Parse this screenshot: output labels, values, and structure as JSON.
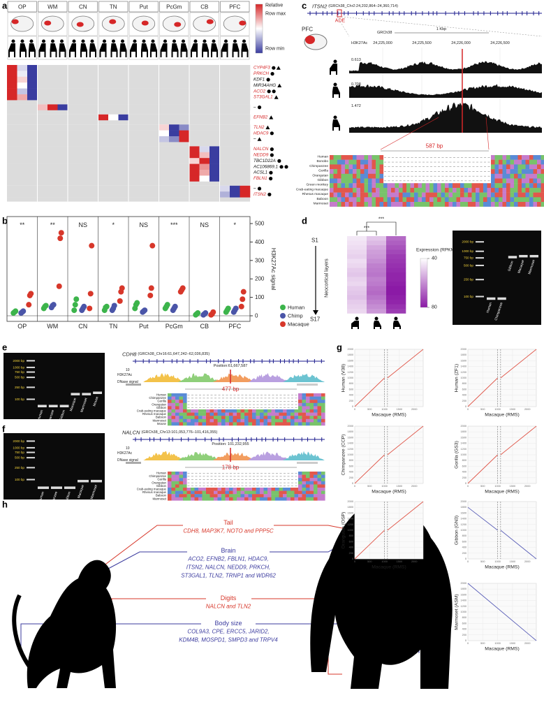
{
  "panel_labels": [
    "a",
    "b",
    "c",
    "d",
    "e",
    "f",
    "g",
    "h"
  ],
  "panel_a": {
    "regions": [
      "OP",
      "WM",
      "CN",
      "TN",
      "Put",
      "PcGm",
      "CB",
      "PFC"
    ],
    "legend": {
      "title": "Relative",
      "max": "Row max",
      "min": "Row min"
    },
    "rows": [
      {
        "gene": "CYP4F3",
        "highlight": true,
        "marker": "circle-triangle",
        "region": 0,
        "values": [
          1,
          -0.2,
          -1
        ]
      },
      {
        "gene": "PRKCH",
        "highlight": true,
        "marker": "circle",
        "region": 0,
        "values": [
          1,
          -0.1,
          -1
        ]
      },
      {
        "gene": "KDF1",
        "highlight": false,
        "marker": "circle",
        "region": 0,
        "values": [
          1,
          0.2,
          -1
        ]
      },
      {
        "gene": "MIR34AHG",
        "highlight": false,
        "marker": "triangle",
        "region": 0,
        "values": [
          1,
          0,
          -1
        ]
      },
      {
        "gene": "ACO2",
        "highlight": true,
        "marker": "circle-circle",
        "region": 0,
        "values": [
          1,
          -0.3,
          -1
        ]
      },
      {
        "gene": "ST3GAL1",
        "highlight": true,
        "marker": "triangle",
        "region": 0,
        "values": [
          1,
          0.4,
          -1
        ]
      },
      {
        "gene": "–",
        "highlight": false,
        "marker": "circle",
        "region": 1,
        "values": [
          0.3,
          1,
          -1
        ]
      },
      {
        "gene": "EFNB2",
        "highlight": true,
        "marker": "triangle",
        "region": 3,
        "values": [
          1,
          0,
          -1
        ]
      },
      {
        "gene": "TLN2",
        "highlight": true,
        "marker": "triangle",
        "region": 5,
        "values": [
          0.2,
          -1,
          -0.6
        ]
      },
      {
        "gene": "HDAC9",
        "highlight": true,
        "marker": "circle",
        "region": 5,
        "values": [
          0,
          -1,
          1
        ]
      },
      {
        "gene": "–",
        "highlight": false,
        "marker": "triangle",
        "region": 5,
        "values": [
          -0.3,
          -0.6,
          1
        ]
      },
      {
        "gene": "NALCN",
        "highlight": true,
        "marker": "circle",
        "region": 6,
        "values": [
          1,
          -0.2,
          -1
        ]
      },
      {
        "gene": "NEDD9",
        "highlight": true,
        "marker": "circle",
        "region": 6,
        "values": [
          1,
          0.3,
          -1
        ]
      },
      {
        "gene": "TBC1D22A",
        "highlight": false,
        "marker": "circle",
        "region": 6,
        "values": [
          0.2,
          1,
          -1
        ]
      },
      {
        "gene": "AC106869.1",
        "highlight": false,
        "marker": "circle-circle",
        "region": 6,
        "values": [
          1,
          0.5,
          -1
        ]
      },
      {
        "gene": "ACSL1",
        "highlight": false,
        "marker": "circle",
        "region": 6,
        "values": [
          1,
          0.4,
          -1
        ]
      },
      {
        "gene": "FBLN1",
        "highlight": true,
        "marker": "circle",
        "region": 6,
        "values": [
          1,
          0,
          -1
        ]
      },
      {
        "gene": "–",
        "highlight": false,
        "marker": "circle",
        "region": 7,
        "values": [
          -0.2,
          -1,
          1
        ]
      },
      {
        "gene": "ITSN2",
        "highlight": true,
        "marker": "circle",
        "region": 7,
        "values": [
          -0.4,
          -1,
          1
        ]
      }
    ]
  },
  "panel_b": {
    "chart_data": {
      "type": "scatter",
      "ylabel": "H3K27Ac signal",
      "categories": [
        "OP",
        "WM",
        "CN",
        "TN",
        "Put",
        "PcGm",
        "CB",
        "PFC"
      ],
      "significance": [
        "**",
        "**",
        "NS",
        "*",
        "NS",
        "***",
        "NS",
        "*"
      ],
      "ylim": [
        0,
        500
      ],
      "yticks": [
        0,
        100,
        200,
        300,
        400,
        500
      ],
      "series": [
        {
          "name": "Human",
          "color": "#3cb44b",
          "values": [
            [
              15,
              20,
              25
            ],
            [
              40,
              50,
              55
            ],
            [
              30,
              60,
              90
            ],
            [
              30,
              45,
              50
            ],
            [
              40,
              60,
              70
            ],
            [
              40,
              50,
              60
            ],
            [
              5,
              10,
              15
            ],
            [
              20,
              30,
              40
            ]
          ]
        },
        {
          "name": "Chimp",
          "color": "#4a55a8",
          "values": [
            [
              15,
              20,
              25
            ],
            [
              45,
              55,
              60
            ],
            [
              30,
              40,
              50
            ],
            [
              30,
              40,
              55
            ],
            [
              20,
              25,
              30
            ],
            [
              30,
              40,
              50
            ],
            [
              5,
              10,
              15
            ],
            [
              20,
              30,
              40
            ]
          ]
        },
        {
          "name": "Macaque",
          "color": "#d7372a",
          "values": [
            [
              60,
              110,
              120
            ],
            [
              160,
              420,
              450
            ],
            [
              40,
              120,
              380
            ],
            [
              80,
              130,
              150
            ],
            [
              110,
              150,
              380
            ],
            [
              130,
              140,
              150
            ],
            [
              5,
              10,
              20
            ],
            [
              50,
              90,
              130
            ]
          ]
        }
      ]
    }
  },
  "panel_c": {
    "gene": "ITSN2",
    "coords": "(GRCh38_Chr2:24,202,864–24,360,714)",
    "ade": "ADE",
    "region": "PFC",
    "scale_label": "GRCh38",
    "scale_bar": "1 Kbp",
    "track_label": "H3K27Ac",
    "positions": [
      "24,225,000",
      "24,225,500",
      "24,226,000",
      "24,226,500"
    ],
    "track_max": [
      0.613,
      0.708,
      1.472
    ],
    "deletion": "587 bp",
    "species": [
      "Human",
      "Bonobo",
      "Chimpanzee",
      "Gorilla",
      "Orangutan",
      "Gibbon",
      "Green monkey",
      "Crab-eating macaque",
      "Rhesus macaque",
      "Baboon",
      "Marmoset"
    ]
  },
  "panel_d": {
    "layer_top": "S1",
    "axis_label": "Neocortical layers",
    "layer_bottom": "S17",
    "significance": [
      "***",
      "***"
    ],
    "colorbar_label": "Expression (RPKM)",
    "colorbar_ticks": [
      40,
      80
    ],
    "heatmap": [
      [
        44,
        45,
        46,
        47,
        48,
        46,
        47,
        49,
        50,
        48,
        47,
        49,
        50,
        51,
        49,
        48,
        47
      ],
      [
        50,
        52,
        55,
        57,
        58,
        60,
        62,
        63,
        64,
        62,
        63,
        65,
        66,
        64,
        62,
        60,
        58
      ],
      [
        66,
        68,
        70,
        72,
        74,
        75,
        76,
        77,
        78,
        78,
        79,
        80,
        80,
        79,
        78,
        76,
        74
      ]
    ],
    "gel": {
      "ladder": [
        "2000 bp",
        "1000 bp",
        "750 bp",
        "500 bp",
        "250 bp",
        "100 bp"
      ],
      "lanes": [
        "Human",
        "Chimpanzee",
        "Gibbon",
        "Macaque",
        "Marmoset"
      ]
    }
  },
  "panel_e": {
    "gel": {
      "ladder": [
        "2000 bp",
        "1000 bp",
        "750 bp",
        "500 bp",
        "250 bp",
        "100 bp"
      ],
      "lanes": [
        "Human",
        "Chimpanzee",
        "Gibbon",
        "Macaque",
        "Marmoset",
        "Mouse"
      ]
    },
    "gene": "CDH8",
    "coords": "(GRCh38_Chr16:61,647,242–62,036,835)",
    "track_scale": 10,
    "track_label": "H3K27Ac",
    "dnase_label": "DNase signal",
    "position": "Position:61,667,587",
    "deletion": "477 bp",
    "species": [
      "Human",
      "Chimpanzee",
      "Gorilla",
      "Orangutan",
      "Gibbon",
      "Crab-eating macaque",
      "Rhesus macaque",
      "Baboon",
      "Marmoset",
      "Mouse"
    ]
  },
  "panel_f": {
    "gel": {
      "ladder": [
        "2000 bp",
        "1000 bp",
        "750 bp",
        "500 bp",
        "250 bp",
        "100 bp"
      ],
      "lanes": [
        "Human",
        "Chimpanzee",
        "Gibbon",
        "Macaque",
        "Marmoset"
      ]
    },
    "gene": "NALCN",
    "coords": "(GRCh38_Chr13:101,053,776–101,416,355)",
    "track_scale": 10,
    "track_label": "H3K27Ac",
    "dnase_label": "DNase signal",
    "position": "Position: 101,232,955",
    "deletion": "178 bp",
    "species": [
      "Human",
      "Chimpanzee",
      "Gorilla",
      "Orangutan",
      "Gibbon",
      "Crab-eating macaque",
      "Rhesus macaque",
      "Baboon",
      "Marmoset"
    ]
  },
  "panel_g": {
    "x_label": "Macaque (RMS)",
    "xlim": [
      0,
      2300
    ],
    "ylim": [
      0,
      2000
    ],
    "xticks": [
      0,
      500,
      1000,
      1500,
      2000
    ],
    "yticks": [
      0,
      200,
      400,
      600,
      800,
      1000,
      1200,
      1400,
      1600,
      1800,
      2000
    ],
    "plots": [
      {
        "y_label": "Human (V38)",
        "color": "#e0574a",
        "breaks": [
          1000,
          1100
        ],
        "segments": [
          [
            [
              0,
              0
            ],
            [
              1000,
              1000
            ]
          ],
          [
            [
              1100,
              1000
            ],
            [
              2300,
              2000
            ]
          ]
        ]
      },
      {
        "y_label": "Human (ZF1)",
        "color": "#e0574a",
        "breaks": [
          1000,
          1100
        ],
        "segments": [
          [
            [
              0,
              0
            ],
            [
              1000,
              1000
            ]
          ],
          [
            [
              1100,
              1000
            ],
            [
              2300,
              2000
            ]
          ]
        ]
      },
      {
        "y_label": "Chimpanzee (CCP)",
        "color": "#e0574a",
        "breaks": [
          1000,
          1100
        ],
        "segments": [
          [
            [
              0,
              0
            ],
            [
              1000,
              1000
            ]
          ],
          [
            [
              1100,
              1000
            ],
            [
              2300,
              2000
            ]
          ]
        ]
      },
      {
        "y_label": "Gorilla (GS3)",
        "color": "#e0574a",
        "breaks": [
          1000,
          1100
        ],
        "segments": [
          [
            [
              0,
              0
            ],
            [
              1000,
              1000
            ]
          ],
          [
            [
              1100,
              1000
            ],
            [
              2300,
              2000
            ]
          ]
        ]
      },
      {
        "y_label": "Orangutan (OSP)",
        "color": "#e0574a",
        "breaks": [
          1000,
          1100
        ],
        "segments": [
          [
            [
              0,
              0
            ],
            [
              1000,
              1000
            ]
          ],
          [
            [
              1100,
              1000
            ],
            [
              2300,
              2000
            ]
          ]
        ]
      },
      {
        "y_label": "Gibbon (GN3)",
        "color": "#5a5fb8",
        "breaks": [
          1000,
          1100
        ],
        "segments": [
          [
            [
              0,
              1800
            ],
            [
              1000,
              1000
            ]
          ],
          [
            [
              1100,
              1000
            ],
            [
              2300,
              0
            ]
          ]
        ]
      },
      {
        "y_label": "Marmoset (ASM)",
        "color": "#5a5fb8",
        "segments": [
          [
            [
              0,
              2000
            ],
            [
              2300,
              0
            ]
          ]
        ]
      }
    ]
  },
  "panel_h": {
    "traits": [
      {
        "title": "Tail",
        "color": "#d7372a",
        "genes": [
          "CDH8, MAP3K7, NOTO and PPP5C"
        ]
      },
      {
        "title": "Brain",
        "color": "#3a3a9e",
        "genes": [
          "ACO2, EFNB2, FBLN1, HDAC9,",
          "ITSN2, NALCN, NEDD9, PRKCH,",
          "ST3GAL1, TLN2, TRNP1 and WDR62"
        ]
      },
      {
        "title": "Digits",
        "color": "#d7372a",
        "genes": [
          "NALCN and TLN2"
        ]
      },
      {
        "title": "Body size",
        "color": "#3a3a9e",
        "genes": [
          "COL9A3, CPE, ERCC5, JARID2,",
          "KDM4B, MOSPD1, SMPD3 and TRPV4"
        ]
      }
    ]
  }
}
